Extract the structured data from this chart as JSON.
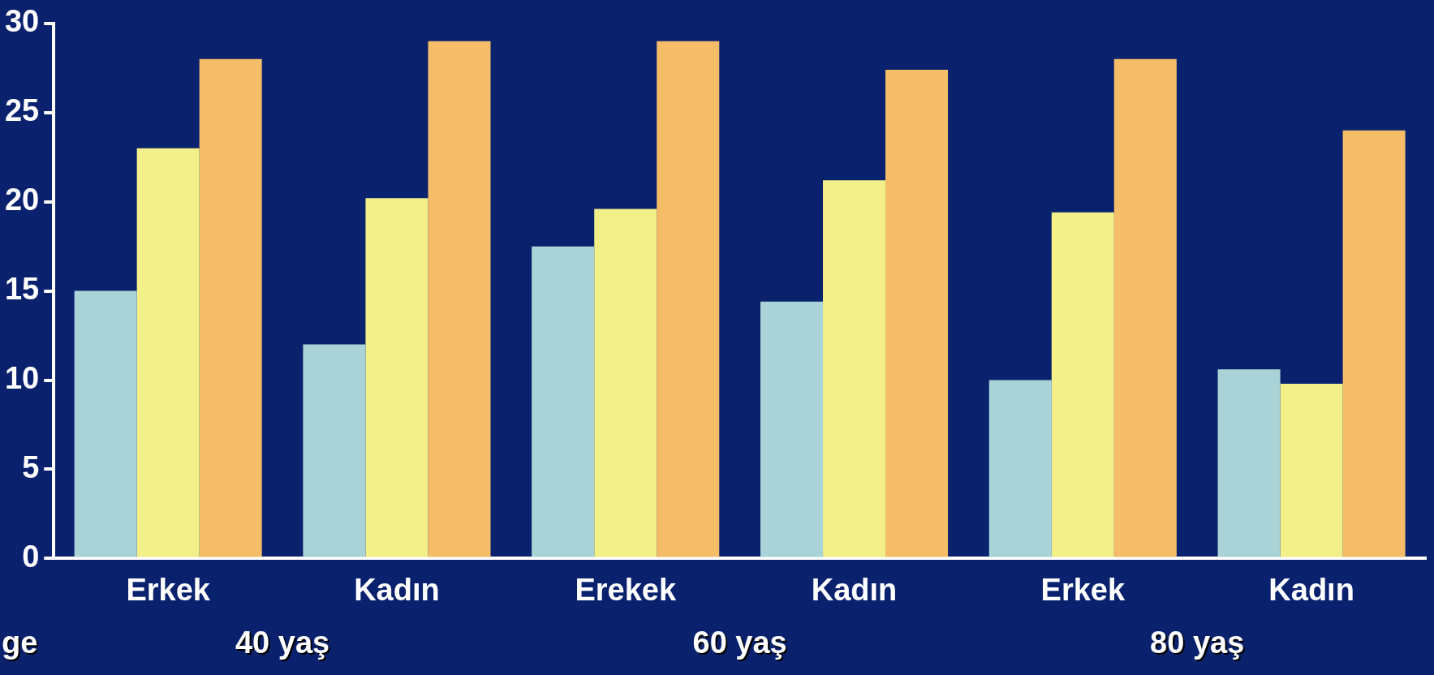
{
  "chart_data": {
    "type": "bar",
    "categories": [
      "Erkek",
      "Kadın",
      "Erekek",
      "Kadın",
      "Erkek",
      "Kadın"
    ],
    "series": [
      {
        "color": "#a9d3d6",
        "values": [
          15,
          12,
          17.5,
          14.4,
          10,
          10.6
        ]
      },
      {
        "color": "#f3f08a",
        "values": [
          23,
          20.2,
          19.6,
          21.2,
          19.4,
          9.8
        ]
      },
      {
        "color": "#f5bd68",
        "values": [
          28,
          29,
          29,
          27.4,
          28,
          24
        ]
      }
    ],
    "ylim": [
      0,
      30
    ],
    "yticks": [
      0,
      5,
      10,
      15,
      20,
      25,
      30
    ],
    "legend": false,
    "annotations": [
      "40 yaş",
      "60 yaş",
      "80 yaş",
      "ge"
    ]
  }
}
